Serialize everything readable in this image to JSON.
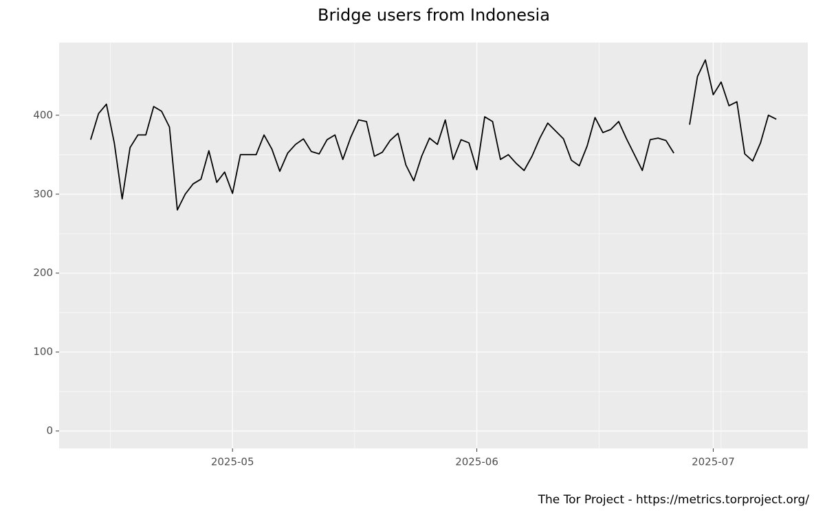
{
  "chart_data": {
    "type": "line",
    "title": "Bridge users from Indonesia",
    "caption": "The Tor Project - https://metrics.torproject.org/",
    "color": "#000000",
    "grid": true,
    "x": [
      "2025-04-13",
      "2025-04-14",
      "2025-04-15",
      "2025-04-16",
      "2025-04-17",
      "2025-04-18",
      "2025-04-19",
      "2025-04-20",
      "2025-04-21",
      "2025-04-22",
      "2025-04-23",
      "2025-04-24",
      "2025-04-25",
      "2025-04-26",
      "2025-04-27",
      "2025-04-28",
      "2025-04-29",
      "2025-04-30",
      "2025-05-01",
      "2025-05-02",
      "2025-05-03",
      "2025-05-04",
      "2025-05-05",
      "2025-05-06",
      "2025-05-07",
      "2025-05-08",
      "2025-05-09",
      "2025-05-10",
      "2025-05-11",
      "2025-05-12",
      "2025-05-13",
      "2025-05-14",
      "2025-05-15",
      "2025-05-16",
      "2025-05-17",
      "2025-05-18",
      "2025-05-19",
      "2025-05-20",
      "2025-05-21",
      "2025-05-22",
      "2025-05-23",
      "2025-05-24",
      "2025-05-25",
      "2025-05-26",
      "2025-05-27",
      "2025-05-28",
      "2025-05-29",
      "2025-05-30",
      "2025-05-31",
      "2025-06-01",
      "2025-06-02",
      "2025-06-03",
      "2025-06-04",
      "2025-06-05",
      "2025-06-06",
      "2025-06-07",
      "2025-06-08",
      "2025-06-09",
      "2025-06-10",
      "2025-06-11",
      "2025-06-12",
      "2025-06-13",
      "2025-06-14",
      "2025-06-15",
      "2025-06-16",
      "2025-06-17",
      "2025-06-18",
      "2025-06-19",
      "2025-06-20",
      "2025-06-21",
      "2025-06-22",
      "2025-06-23",
      "2025-06-24",
      "2025-06-25",
      "2025-06-26",
      "2025-06-27",
      "2025-06-28",
      "2025-06-29",
      "2025-06-30",
      "2025-07-01",
      "2025-07-02",
      "2025-07-03",
      "2025-07-04",
      "2025-07-05",
      "2025-07-06",
      "2025-07-07",
      "2025-07-08",
      "2025-07-09"
    ],
    "values": [
      369,
      402,
      414,
      365,
      294,
      359,
      375,
      375,
      411,
      405,
      385,
      280,
      300,
      313,
      319,
      355,
      315,
      328,
      301,
      350,
      350,
      350,
      375,
      357,
      329,
      352,
      363,
      370,
      354,
      351,
      369,
      375,
      344,
      372,
      394,
      392,
      348,
      353,
      368,
      377,
      337,
      317,
      348,
      371,
      363,
      394,
      344,
      369,
      365,
      331,
      398,
      392,
      344,
      350,
      339,
      330,
      348,
      371,
      390,
      380,
      370,
      343,
      336,
      361,
      397,
      378,
      382,
      392,
      370,
      350,
      330,
      369,
      371,
      368,
      352,
      null,
      388,
      449,
      470,
      426,
      442,
      412,
      417,
      351,
      342,
      365,
      400,
      395
    ],
    "xlim": [
      "2025-04-09",
      "2025-07-13"
    ],
    "xticks": [
      {
        "value": "2025-05-01",
        "label": "2025-05"
      },
      {
        "value": "2025-06-01",
        "label": "2025-06"
      },
      {
        "value": "2025-07-01",
        "label": "2025-07"
      }
    ],
    "ylim": [
      -22,
      492
    ],
    "yticks": [
      0,
      100,
      200,
      300,
      400
    ]
  }
}
